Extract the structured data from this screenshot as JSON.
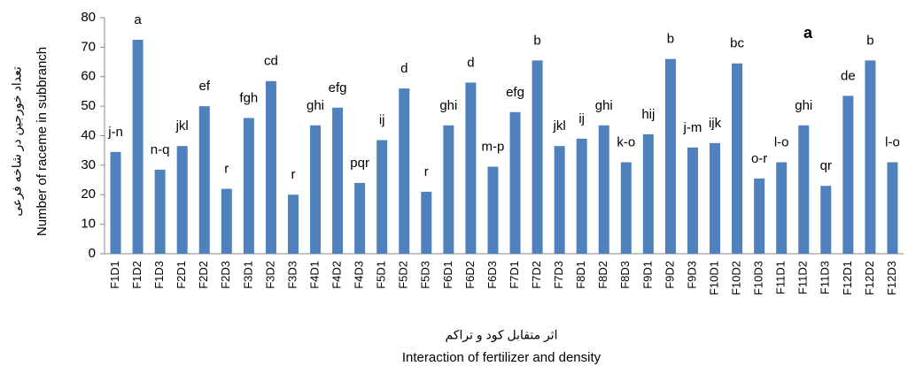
{
  "chart_data": {
    "type": "bar",
    "panel_label": "a",
    "y_label": [
      "تعداد خورجین در شاخه فرعی",
      "Number of raceme in subbranch"
    ],
    "x_label": [
      "اثر متقابل کود و تراکم",
      "Interaction of fertilizer and density"
    ],
    "categories": [
      "F1D1",
      "F1D2",
      "F1D3",
      "F2D1",
      "F2D2",
      "F2D3",
      "F3D1",
      "F3D2",
      "F3D3",
      "F4D1",
      "F4D2",
      "F4D3",
      "F5D1",
      "F5D2",
      "F5D3",
      "F6D1",
      "F6D2",
      "F6D3",
      "F7D1",
      "F7D2",
      "F7D3",
      "F8D1",
      "F8D2",
      "F8D3",
      "F9D1",
      "F9D2",
      "F9D3",
      "F10D1",
      "F10D2",
      "F10D3",
      "F11D1",
      "F11D2",
      "F11D3",
      "F12D1",
      "F12D2",
      "F12D3"
    ],
    "values": [
      34.5,
      72.5,
      28.5,
      36.5,
      50,
      22,
      46,
      58.5,
      20,
      43.5,
      49.5,
      24,
      38.5,
      56,
      21,
      43.5,
      58,
      29.5,
      48,
      65.5,
      36.5,
      39,
      43.5,
      31,
      40.5,
      66,
      36,
      37.5,
      64.5,
      25.5,
      31,
      43.5,
      23,
      53.5,
      65.5,
      31
    ],
    "annotations": [
      "j-n",
      "a",
      "n-q",
      "jkl",
      "ef",
      "r",
      "fgh",
      "cd",
      "r",
      "ghi",
      "efg",
      "pqr",
      "ij",
      "d",
      "r",
      "ghi",
      "d",
      "m-p",
      "efg",
      "b",
      "jkl",
      "ij",
      "ghi",
      "k-o",
      "hij",
      "b",
      "j-m",
      "ijk",
      "bc",
      "o-r",
      "l-o",
      "ghi",
      "qr",
      "de",
      "b",
      "l-o"
    ],
    "color": "#4f81bd",
    "ylim": [
      0,
      80
    ],
    "yticks": [
      0,
      10,
      20,
      30,
      40,
      50,
      60,
      70,
      80
    ]
  }
}
